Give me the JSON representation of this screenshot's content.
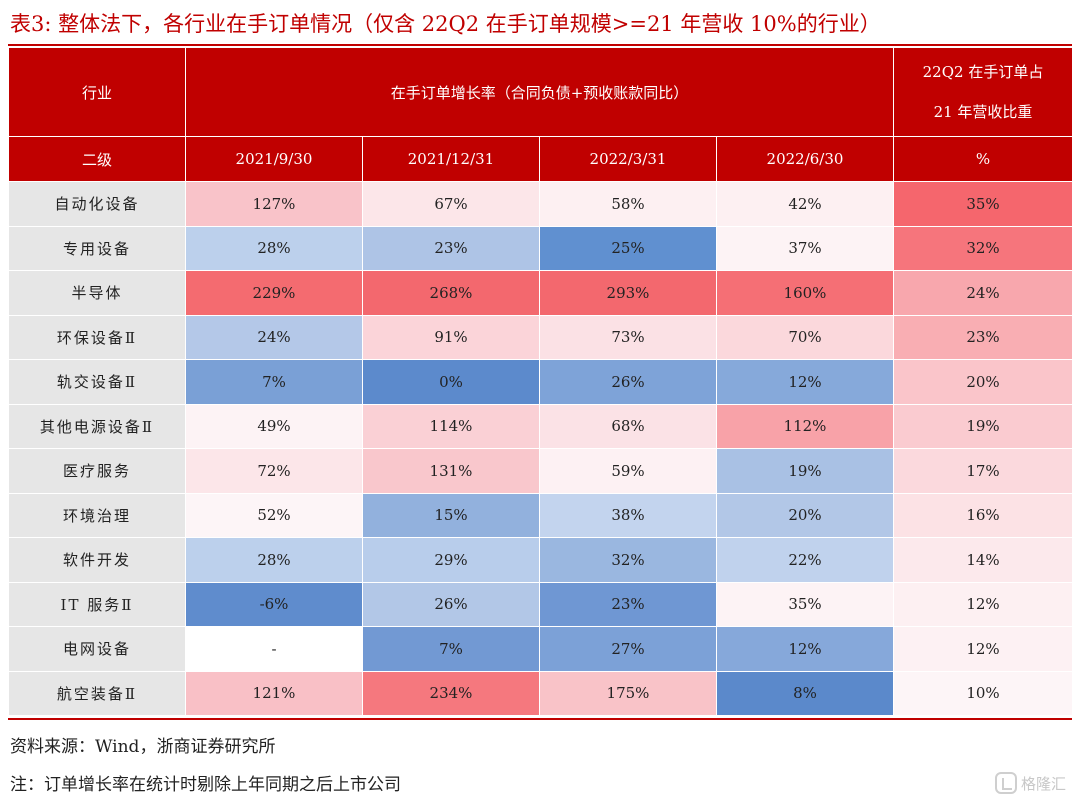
{
  "title": "表3:  整体法下，各行业在手订单情况（仅含 22Q2 在手订单规模>=21 年营收 10%的行业）",
  "header": {
    "industry": "行业",
    "growth_group": "在手订单增长率（合同负债+预收账款同比）",
    "ratio_line1": "22Q2 在手订单占",
    "ratio_line2": "21 年营收比重",
    "sub_label": "二级",
    "dates": [
      "2021/9/30",
      "2021/12/31",
      "2022/3/31",
      "2022/6/30"
    ],
    "ratio_unit": "%"
  },
  "rows": [
    {
      "name": "自动化设备",
      "cells": [
        {
          "v": "127%",
          "c": "#f9c3c9"
        },
        {
          "v": "67%",
          "c": "#fce6e9"
        },
        {
          "v": "58%",
          "c": "#fdf0f2"
        },
        {
          "v": "42%",
          "c": "#fdf0f2"
        },
        {
          "v": "35%",
          "c": "#f5666d"
        }
      ]
    },
    {
      "name": "专用设备",
      "cells": [
        {
          "v": "28%",
          "c": "#bcd0ec"
        },
        {
          "v": "23%",
          "c": "#aec4e6"
        },
        {
          "v": "25%",
          "c": "#6090d0"
        },
        {
          "v": "37%",
          "c": "#fdf3f5"
        },
        {
          "v": "32%",
          "c": "#f6757c"
        }
      ]
    },
    {
      "name": "半导体",
      "cells": [
        {
          "v": "229%",
          "c": "#f46b70"
        },
        {
          "v": "268%",
          "c": "#f3686e"
        },
        {
          "v": "293%",
          "c": "#f3686e"
        },
        {
          "v": "160%",
          "c": "#f56f75"
        },
        {
          "v": "24%",
          "c": "#f8a7ad"
        }
      ]
    },
    {
      "name": "环保设备Ⅱ",
      "cells": [
        {
          "v": "24%",
          "c": "#b4c8e8"
        },
        {
          "v": "91%",
          "c": "#fbd4d9"
        },
        {
          "v": "73%",
          "c": "#fbe1e5"
        },
        {
          "v": "70%",
          "c": "#fbd8dc"
        },
        {
          "v": "23%",
          "c": "#f9aeb3"
        }
      ]
    },
    {
      "name": "轨交设备Ⅱ",
      "cells": [
        {
          "v": "7%",
          "c": "#7aa0d6"
        },
        {
          "v": "0%",
          "c": "#5c8acc"
        },
        {
          "v": "26%",
          "c": "#7ea3d8"
        },
        {
          "v": "12%",
          "c": "#86a9da"
        },
        {
          "v": "20%",
          "c": "#fac5ca"
        }
      ]
    },
    {
      "name": "其他电源设备Ⅱ",
      "cells": [
        {
          "v": "49%",
          "c": "#fdf3f5"
        },
        {
          "v": "114%",
          "c": "#fad0d5"
        },
        {
          "v": "68%",
          "c": "#fbe2e6"
        },
        {
          "v": "112%",
          "c": "#f8a2a8"
        },
        {
          "v": "19%",
          "c": "#facbd0"
        }
      ]
    },
    {
      "name": "医疗服务",
      "cells": [
        {
          "v": "72%",
          "c": "#fce6e9"
        },
        {
          "v": "131%",
          "c": "#f9c7cc"
        },
        {
          "v": "59%",
          "c": "#fdf1f3"
        },
        {
          "v": "19%",
          "c": "#a9c1e4"
        },
        {
          "v": "17%",
          "c": "#fbd9dd"
        }
      ]
    },
    {
      "name": "环境治理",
      "cells": [
        {
          "v": "52%",
          "c": "#fdf5f7"
        },
        {
          "v": "15%",
          "c": "#92b1dd"
        },
        {
          "v": "38%",
          "c": "#c3d4ee"
        },
        {
          "v": "20%",
          "c": "#b2c7e7"
        },
        {
          "v": "16%",
          "c": "#fce2e5"
        }
      ]
    },
    {
      "name": "软件开发",
      "cells": [
        {
          "v": "28%",
          "c": "#bcd0ec"
        },
        {
          "v": "29%",
          "c": "#b8cdeb"
        },
        {
          "v": "32%",
          "c": "#9ab7e0"
        },
        {
          "v": "22%",
          "c": "#c0d2ed"
        },
        {
          "v": "14%",
          "c": "#fce9ec"
        }
      ]
    },
    {
      "name": "IT 服务Ⅱ",
      "cells": [
        {
          "v": "-6%",
          "c": "#5f8ccd"
        },
        {
          "v": "26%",
          "c": "#b2c7e7"
        },
        {
          "v": "23%",
          "c": "#6f97d3"
        },
        {
          "v": "35%",
          "c": "#fdf3f5"
        },
        {
          "v": "12%",
          "c": "#fdf0f2"
        }
      ]
    },
    {
      "name": "电网设备",
      "cells": [
        {
          "v": "-",
          "c": "#ffffff"
        },
        {
          "v": "7%",
          "c": "#7299d3"
        },
        {
          "v": "27%",
          "c": "#7ca1d7"
        },
        {
          "v": "12%",
          "c": "#86a8da"
        },
        {
          "v": "12%",
          "c": "#fdf1f3"
        }
      ]
    },
    {
      "name": "航空装备Ⅱ",
      "cells": [
        {
          "v": "121%",
          "c": "#f9c0c6"
        },
        {
          "v": "234%",
          "c": "#f5787e"
        },
        {
          "v": "175%",
          "c": "#f9c3c8"
        },
        {
          "v": "8%",
          "c": "#5b89cb"
        },
        {
          "v": "10%",
          "c": "#fdf5f7"
        }
      ]
    }
  ],
  "source": "资料来源：Wind，浙商证券研究所",
  "note": "注：订单增长率在统计时剔除上年同期之后上市公司",
  "watermark": "格隆汇"
}
